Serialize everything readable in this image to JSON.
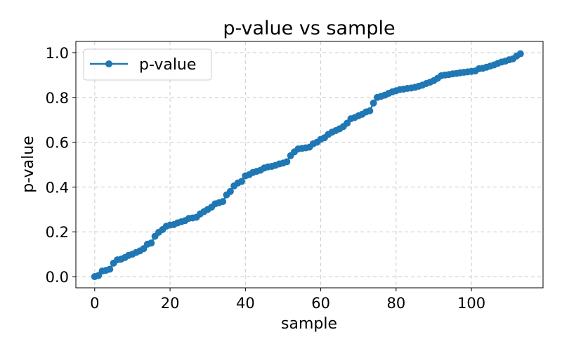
{
  "chart_data": {
    "type": "line",
    "title": "p-value vs sample",
    "xlabel": "sample",
    "ylabel": "p-value",
    "xlim": [
      -5,
      119
    ],
    "ylim": [
      -0.05,
      1.05
    ],
    "xticks": [
      0,
      20,
      40,
      60,
      80,
      100
    ],
    "yticks": [
      0.0,
      0.2,
      0.4,
      0.6,
      0.8,
      1.0
    ],
    "xtick_labels": [
      "0",
      "20",
      "40",
      "60",
      "80",
      "100"
    ],
    "ytick_labels": [
      "0.0",
      "0.2",
      "0.4",
      "0.6",
      "0.8",
      "1.0"
    ],
    "grid": true,
    "legend_position": "top-left",
    "series": [
      {
        "name": "p-value",
        "color": "#1f77b4",
        "marker": "circle",
        "x": [
          0,
          1,
          2,
          3,
          4,
          5,
          6,
          7,
          8,
          9,
          10,
          11,
          12,
          13,
          14,
          15,
          16,
          17,
          18,
          19,
          20,
          21,
          22,
          23,
          24,
          25,
          26,
          27,
          28,
          29,
          30,
          31,
          32,
          33,
          34,
          35,
          36,
          37,
          38,
          39,
          40,
          41,
          42,
          43,
          44,
          45,
          46,
          47,
          48,
          49,
          50,
          51,
          52,
          53,
          54,
          55,
          56,
          57,
          58,
          59,
          60,
          61,
          62,
          63,
          64,
          65,
          66,
          67,
          68,
          69,
          70,
          71,
          72,
          73,
          74,
          75,
          76,
          77,
          78,
          79,
          80,
          81,
          82,
          83,
          84,
          85,
          86,
          87,
          88,
          89,
          90,
          91,
          92,
          93,
          94,
          95,
          96,
          97,
          98,
          99,
          100,
          101,
          102,
          103,
          104,
          105,
          106,
          107,
          108,
          109,
          110,
          111,
          112,
          113
        ],
        "values": [
          0.0,
          0.005,
          0.025,
          0.028,
          0.033,
          0.06,
          0.075,
          0.078,
          0.085,
          0.095,
          0.1,
          0.108,
          0.115,
          0.125,
          0.145,
          0.15,
          0.18,
          0.198,
          0.21,
          0.225,
          0.23,
          0.232,
          0.24,
          0.245,
          0.25,
          0.26,
          0.262,
          0.265,
          0.28,
          0.29,
          0.3,
          0.31,
          0.325,
          0.33,
          0.335,
          0.365,
          0.38,
          0.405,
          0.418,
          0.425,
          0.45,
          0.455,
          0.465,
          0.47,
          0.475,
          0.485,
          0.49,
          0.492,
          0.497,
          0.503,
          0.507,
          0.513,
          0.54,
          0.557,
          0.57,
          0.572,
          0.575,
          0.578,
          0.593,
          0.6,
          0.613,
          0.62,
          0.635,
          0.645,
          0.652,
          0.66,
          0.67,
          0.685,
          0.705,
          0.71,
          0.718,
          0.725,
          0.735,
          0.74,
          0.775,
          0.8,
          0.805,
          0.81,
          0.818,
          0.825,
          0.83,
          0.835,
          0.837,
          0.84,
          0.842,
          0.845,
          0.85,
          0.855,
          0.862,
          0.868,
          0.875,
          0.885,
          0.897,
          0.9,
          0.902,
          0.905,
          0.907,
          0.91,
          0.912,
          0.914,
          0.916,
          0.918,
          0.928,
          0.93,
          0.935,
          0.94,
          0.945,
          0.952,
          0.958,
          0.962,
          0.968,
          0.972,
          0.985,
          0.995
        ]
      }
    ]
  }
}
